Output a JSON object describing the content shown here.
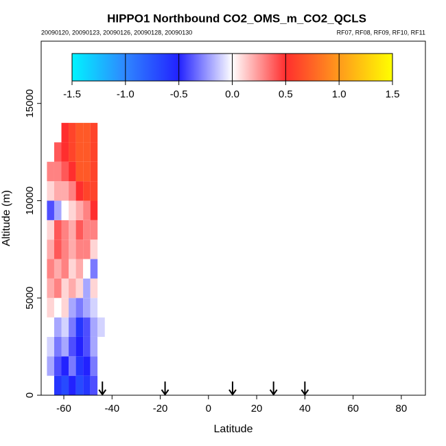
{
  "chart_data": {
    "type": "heatmap",
    "title": "HIPPO1 Northbound CO2_OMS_m_CO2_QCLS",
    "subtitle_left": "20090120, 20090123, 20090126, 20090128, 20090130",
    "subtitle_right": "RF07, RF08, RF09, RF10, RF11",
    "x_label": "Latitude",
    "y_label": "Altitude (m)",
    "xlim": [
      -69.4,
      90
    ],
    "ylim": [
      0,
      18200
    ],
    "xticks": [
      -60,
      -40,
      -20,
      0,
      20,
      40,
      60,
      80
    ],
    "yticks": [
      0,
      5000,
      10000,
      15000
    ],
    "x_bins": [
      -67,
      -64,
      -61,
      -58,
      -55,
      -52,
      -49,
      -46,
      -43
    ],
    "y_bins": [
      0,
      1000,
      2000,
      3000,
      4000,
      5000,
      6000,
      7000,
      8000,
      9000,
      10000,
      11000,
      12000,
      13000,
      14000
    ],
    "values": [
      [
        null,
        -0.6,
        -0.7,
        -0.5,
        -0.7,
        -0.6,
        -0.4,
        0
      ],
      [
        -0.2,
        -0.4,
        -0.5,
        -0.3,
        -0.6,
        -0.5,
        -0.3,
        0
      ],
      [
        -0.1,
        -0.3,
        -0.2,
        -0.4,
        -0.5,
        -0.4,
        -0.2,
        0
      ],
      [
        0,
        -0.2,
        -0.1,
        -0.3,
        -0.6,
        -0.4,
        -0.2,
        -0.1
      ],
      [
        0.1,
        0,
        0.1,
        -0.2,
        -0.3,
        -0.2,
        -0.1,
        0
      ],
      [
        0.2,
        0.3,
        0.1,
        0.2,
        0.1,
        -0.2,
        0.1,
        null
      ],
      [
        0.3,
        0.2,
        0.3,
        0.1,
        0.2,
        0,
        -0.3,
        null
      ],
      [
        0.2,
        0.4,
        0.3,
        0.2,
        0.3,
        0.3,
        0.1,
        null
      ],
      [
        0.1,
        0.4,
        0.3,
        0.2,
        0.4,
        0.3,
        0.3,
        null
      ],
      [
        -0.4,
        -0.2,
        0,
        0.1,
        0.2,
        0.3,
        0.5,
        null
      ],
      [
        0.1,
        0.2,
        0.2,
        0.3,
        0.5,
        0.6,
        0.6,
        null
      ],
      [
        0.3,
        0.3,
        0.4,
        0.5,
        0.7,
        0.7,
        0.6,
        null
      ],
      [
        null,
        0.4,
        0.5,
        0.6,
        0.7,
        0.7,
        0.6,
        null
      ],
      [
        null,
        null,
        0.5,
        0.6,
        0.7,
        0.7,
        0.6,
        null
      ]
    ],
    "arrows": [
      -44,
      -18,
      10,
      27,
      40
    ],
    "colorbar_ticks": [
      -1.5,
      {
        "value": -1.0,
        "label": "-1.0"
      },
      -0.5,
      {
        "value": 0,
        "label": "0.0"
      },
      0.5,
      {
        "value": 1.0,
        "label": "1.0"
      },
      1.5
    ],
    "colorbar_colors": [
      "#00f4ff",
      "#2f86ff",
      "#2222ff",
      "#ffffff",
      "#ff2e2e",
      "#ff9a1c",
      "#ffff00"
    ]
  }
}
